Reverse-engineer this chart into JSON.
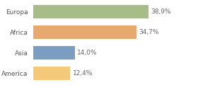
{
  "categories": [
    "America",
    "Asia",
    "Africa",
    "Europa"
  ],
  "values": [
    12.4,
    14.0,
    34.7,
    38.9
  ],
  "labels": [
    "12,4%",
    "14,0%",
    "34,7%",
    "38,9%"
  ],
  "bar_colors": [
    "#f5c97a",
    "#7b9dc0",
    "#e8a96e",
    "#a8bc8a"
  ],
  "background_color": "#ffffff",
  "xlim": [
    0,
    55
  ],
  "bar_height": 0.65,
  "label_fontsize": 6.5,
  "tick_fontsize": 6.5
}
